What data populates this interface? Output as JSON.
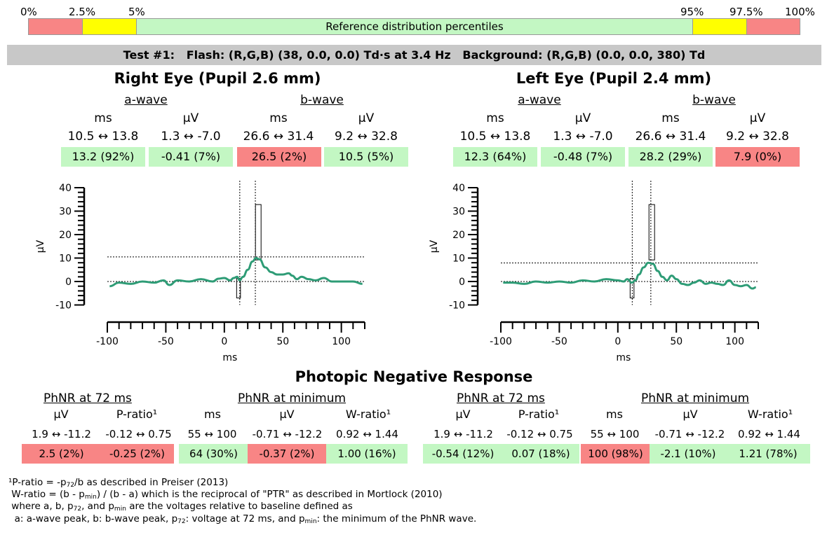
{
  "percentile_bar": {
    "labels": [
      "0%",
      "2.5%",
      "5%",
      "95%",
      "97.5%",
      "100%"
    ],
    "caption": "Reference distribution percentiles",
    "colors": {
      "red": "#f88585",
      "yellow": "#ffff00",
      "green": "#c3f7c3"
    }
  },
  "test_header": "Test #1:   Flash: (R,G,B) (38, 0.0, 0.0) Td·s at 3.4 Hz   Background: (R,G,B) (0.0, 0.0, 380) Td",
  "eyes": [
    {
      "title": "Right Eye (Pupil 2.6 mm)",
      "a_wave_label": "a-wave",
      "b_wave_label": "b-wave",
      "units": [
        "ms",
        "µV",
        "ms",
        "µV"
      ],
      "ranges": [
        "10.5 ↔ 13.8",
        "1.3 ↔ -7.0",
        "26.6 ↔ 31.4",
        "9.2 ↔ 32.8"
      ],
      "values": [
        "13.2 (92%)",
        "-0.41 (7%)",
        "26.5 (2%)",
        "10.5 (5%)"
      ],
      "value_status": [
        "green",
        "green",
        "red",
        "green"
      ],
      "plot": {
        "ylabel": "µV",
        "xlabel": "ms",
        "yticks": [
          "40",
          "30",
          "20",
          "10",
          "0",
          "-10"
        ],
        "xticks": [
          "-100",
          "-50",
          "0",
          "50",
          "100"
        ],
        "a_wave_ms": 13.2,
        "b_wave_ms": 26.5,
        "b_wave_uv": 10.5,
        "trace": [
          [
            -98,
            -2
          ],
          [
            -90,
            -0.5
          ],
          [
            -80,
            -1
          ],
          [
            -70,
            0
          ],
          [
            -60,
            -0.5
          ],
          [
            -52,
            0.5
          ],
          [
            -47,
            -1.5
          ],
          [
            -40,
            0.5
          ],
          [
            -30,
            0
          ],
          [
            -20,
            1
          ],
          [
            -10,
            0
          ],
          [
            -5,
            1.2
          ],
          [
            0,
            1.5
          ],
          [
            5,
            0.5
          ],
          [
            8,
            1.5
          ],
          [
            11,
            2
          ],
          [
            13,
            0.5
          ],
          [
            16,
            2
          ],
          [
            20,
            5
          ],
          [
            24,
            8.5
          ],
          [
            27,
            10
          ],
          [
            30,
            9.5
          ],
          [
            35,
            6
          ],
          [
            40,
            4
          ],
          [
            45,
            3
          ],
          [
            50,
            3
          ],
          [
            55,
            3.5
          ],
          [
            58,
            2.5
          ],
          [
            62,
            1
          ],
          [
            66,
            2
          ],
          [
            72,
            1
          ],
          [
            78,
            0.5
          ],
          [
            85,
            1.5
          ],
          [
            92,
            0
          ],
          [
            100,
            0
          ],
          [
            110,
            0
          ],
          [
            118,
            -1
          ]
        ]
      }
    },
    {
      "title": "Left Eye (Pupil 2.4 mm)",
      "a_wave_label": "a-wave",
      "b_wave_label": "b-wave",
      "units": [
        "ms",
        "µV",
        "ms",
        "µV"
      ],
      "ranges": [
        "10.5 ↔ 13.8",
        "1.3 ↔ -7.0",
        "26.6 ↔ 31.4",
        "9.2 ↔ 32.8"
      ],
      "values": [
        "12.3 (64%)",
        "-0.48 (7%)",
        "28.2 (29%)",
        "7.9 (0%)"
      ],
      "value_status": [
        "green",
        "green",
        "green",
        "red"
      ],
      "plot": {
        "ylabel": "µV",
        "xlabel": "ms",
        "yticks": [
          "40",
          "30",
          "20",
          "10",
          "0",
          "-10"
        ],
        "xticks": [
          "-100",
          "-50",
          "0",
          "50",
          "100"
        ],
        "a_wave_ms": 12.3,
        "b_wave_ms": 28.2,
        "b_wave_uv": 7.9,
        "trace": [
          [
            -98,
            -0.5
          ],
          [
            -90,
            -0.5
          ],
          [
            -80,
            -1
          ],
          [
            -70,
            0
          ],
          [
            -60,
            -0.5
          ],
          [
            -50,
            0
          ],
          [
            -40,
            -0.5
          ],
          [
            -30,
            0.5
          ],
          [
            -20,
            0
          ],
          [
            -10,
            1
          ],
          [
            0,
            0.5
          ],
          [
            5,
            0
          ],
          [
            8,
            1
          ],
          [
            12,
            -0.5
          ],
          [
            15,
            0.5
          ],
          [
            18,
            3
          ],
          [
            22,
            6
          ],
          [
            26,
            8
          ],
          [
            30,
            7.5
          ],
          [
            34,
            4.5
          ],
          [
            38,
            2
          ],
          [
            42,
            0.5
          ],
          [
            46,
            2.5
          ],
          [
            50,
            1
          ],
          [
            55,
            -1
          ],
          [
            60,
            -1.5
          ],
          [
            65,
            -0.5
          ],
          [
            70,
            0.5
          ],
          [
            75,
            -1
          ],
          [
            80,
            -0.5
          ],
          [
            85,
            -1
          ],
          [
            90,
            -1.5
          ],
          [
            95,
            0.5
          ],
          [
            100,
            -1.5
          ],
          [
            105,
            -2
          ],
          [
            110,
            -1.5
          ],
          [
            115,
            -3
          ],
          [
            118,
            -2.5
          ]
        ]
      }
    }
  ],
  "phnr": {
    "title": "Photopic Negative Response",
    "panels": [
      {
        "at72_label": "PhNR at 72 ms",
        "min_label": "PhNR at minimum",
        "units": [
          "µV",
          "P-ratio¹",
          "ms",
          "µV",
          "W-ratio¹"
        ],
        "ranges": [
          "1.9 ↔ -11.2",
          "-0.12 ↔ 0.75",
          "55 ↔ 100",
          "-0.71 ↔ -12.2",
          "0.92 ↔ 1.44"
        ],
        "values": [
          "2.5 (2%)",
          "-0.25 (2%)",
          "64 (30%)",
          "-0.37 (2%)",
          "1.00 (16%)"
        ],
        "value_status": [
          "red",
          "red",
          "green",
          "red",
          "green"
        ]
      },
      {
        "at72_label": "PhNR at 72 ms",
        "min_label": "PhNR at minimum",
        "units": [
          "µV",
          "P-ratio¹",
          "ms",
          "µV",
          "W-ratio¹"
        ],
        "ranges": [
          "1.9 ↔ -11.2",
          "-0.12 ↔ 0.75",
          "55 ↔ 100",
          "-0.71 ↔ -12.2",
          "0.92 ↔ 1.44"
        ],
        "values": [
          "-0.54 (12%)",
          "0.07 (18%)",
          "100 (98%)",
          "-2.1 (10%)",
          "1.21 (78%)"
        ],
        "value_status": [
          "green",
          "green",
          "red",
          "green",
          "green"
        ]
      }
    ]
  },
  "footnotes": {
    "line1_a": "¹P-ratio = -p",
    "line1_sub": "72",
    "line1_b": "/b as described in Preiser (2013)",
    "line2_a": " W-ratio = (b - p",
    "line2_sub": "min",
    "line2_b": ") / (b - a) which is the reciprocal of \"PTR\" as described in Mortlock (2010)",
    "line3_a": " where a, b, p",
    "line3_sub1": "72",
    "line3_b": ", and p",
    "line3_sub2": "min",
    "line3_c": " are the voltages relative to baseline defined as",
    "line4_a": "  a: a-wave peak, b: b-wave peak, p",
    "line4_sub1": "72",
    "line4_b": ": voltage at 72 ms, and p",
    "line4_sub2": "min",
    "line4_c": ": the minimum of the PhNR wave."
  }
}
